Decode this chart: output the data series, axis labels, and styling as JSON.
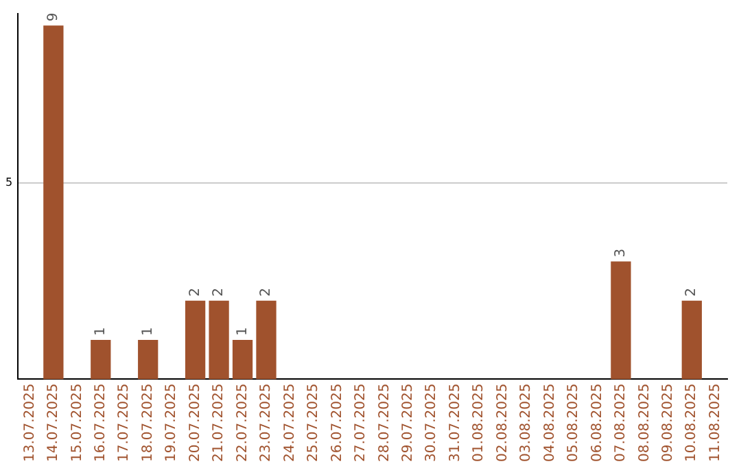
{
  "chart_data": {
    "type": "bar",
    "categories": [
      "13.07.2025",
      "14.07.2025",
      "15.07.2025",
      "16.07.2025",
      "17.07.2025",
      "18.07.2025",
      "19.07.2025",
      "20.07.2025",
      "21.07.2025",
      "22.07.2025",
      "23.07.2025",
      "24.07.2025",
      "25.07.2025",
      "26.07.2025",
      "27.07.2025",
      "28.07.2025",
      "29.07.2025",
      "30.07.2025",
      "31.07.2025",
      "01.08.2025",
      "02.08.2025",
      "03.08.2025",
      "04.08.2025",
      "05.08.2025",
      "06.08.2025",
      "07.08.2025",
      "08.08.2025",
      "09.08.2025",
      "10.08.2025",
      "11.08.2025"
    ],
    "values": [
      0,
      9,
      0,
      1,
      0,
      1,
      0,
      2,
      2,
      1,
      2,
      0,
      0,
      0,
      0,
      0,
      0,
      0,
      0,
      0,
      0,
      0,
      0,
      0,
      0,
      3,
      0,
      0,
      2,
      0
    ],
    "value_labels": [
      null,
      "9",
      null,
      "1",
      null,
      "1",
      null,
      "2",
      "2",
      "1",
      "2",
      null,
      null,
      null,
      null,
      null,
      null,
      null,
      null,
      null,
      null,
      null,
      null,
      null,
      null,
      "3",
      null,
      null,
      "2",
      null
    ],
    "color": "#a0522d",
    "ylim": [
      0,
      9.3
    ],
    "yticks": [
      5
    ],
    "grid": "y",
    "legend": false
  }
}
